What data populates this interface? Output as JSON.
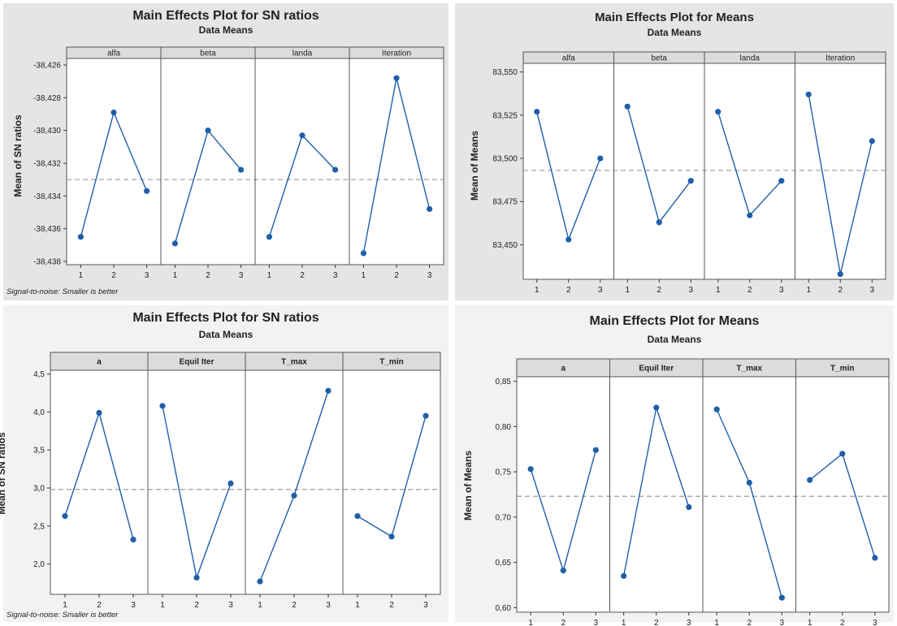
{
  "chart_data": [
    {
      "type": "line",
      "title": "Main Effects Plot for SN ratios",
      "subtitle": "Data Means",
      "ylabel": "Mean of SN ratios",
      "footnote": "Signal-to-noise: Smaller is better",
      "ylim": [
        -38.4382,
        -38.4256
      ],
      "yticks": [
        -38.426,
        -38.428,
        -38.43,
        -38.432,
        -38.434,
        -38.436,
        -38.438
      ],
      "ytick_labels": [
        "-38,426",
        "-38,428",
        "-38,430",
        "-38,432",
        "-38,434",
        "-38,436",
        "-38,438"
      ],
      "reference_line": -38.433,
      "categories": [
        "1",
        "2",
        "3"
      ],
      "series": [
        {
          "name": "alfa",
          "values": [
            -38.4365,
            -38.4289,
            -38.4337
          ]
        },
        {
          "name": "beta",
          "values": [
            -38.4369,
            -38.43,
            -38.4324
          ]
        },
        {
          "name": "landa",
          "values": [
            -38.4365,
            -38.4303,
            -38.4324
          ]
        },
        {
          "name": "Iteration",
          "values": [
            -38.4375,
            -38.4268,
            -38.4348
          ]
        }
      ]
    },
    {
      "type": "line",
      "title": "Main Effects Plot for Means",
      "subtitle": "Data Means",
      "ylabel": "Mean of Means",
      "ylim": [
        83.43,
        83.555
      ],
      "yticks": [
        83.45,
        83.475,
        83.5,
        83.525,
        83.55
      ],
      "ytick_labels": [
        "83,450",
        "83,475",
        "83,500",
        "83,525",
        "83,550"
      ],
      "reference_line": 83.493,
      "categories": [
        "1",
        "2",
        "3"
      ],
      "series": [
        {
          "name": "alfa",
          "values": [
            83.527,
            83.453,
            83.5
          ]
        },
        {
          "name": "beta",
          "values": [
            83.53,
            83.463,
            83.487
          ]
        },
        {
          "name": "landa",
          "values": [
            83.527,
            83.467,
            83.487
          ]
        },
        {
          "name": "Iteration",
          "values": [
            83.537,
            83.433,
            83.51
          ]
        }
      ]
    },
    {
      "type": "line",
      "title": "Main Effects Plot for SN ratios",
      "subtitle": "Data Means",
      "ylabel": "Mean of SN ratios",
      "footnote": "Signal-to-noise: Smaller is better",
      "ylim": [
        1.6,
        4.55
      ],
      "yticks": [
        2.0,
        2.5,
        3.0,
        3.5,
        4.0,
        4.5
      ],
      "ytick_labels": [
        "2,0",
        "2,5",
        "3,0",
        "3,5",
        "4,0",
        "4,5"
      ],
      "reference_line": 2.98,
      "categories": [
        "1",
        "2",
        "3"
      ],
      "series": [
        {
          "name": "a",
          "values": [
            2.63,
            3.99,
            2.32
          ]
        },
        {
          "name": "Equil Iter",
          "values": [
            4.08,
            1.82,
            3.06
          ]
        },
        {
          "name": "T_max",
          "values": [
            1.77,
            2.9,
            4.28
          ]
        },
        {
          "name": "T_min",
          "values": [
            2.63,
            2.36,
            3.95
          ]
        }
      ]
    },
    {
      "type": "line",
      "title": "Main Effects Plot for Means",
      "subtitle": "Data Means",
      "ylabel": "Mean of Means",
      "ylim": [
        0.595,
        0.855
      ],
      "yticks": [
        0.6,
        0.65,
        0.7,
        0.75,
        0.8,
        0.85
      ],
      "ytick_labels": [
        "0,60",
        "0,65",
        "0,70",
        "0,75",
        "0,80",
        "0,85"
      ],
      "reference_line": 0.723,
      "categories": [
        "1",
        "2",
        "3"
      ],
      "series": [
        {
          "name": "a",
          "values": [
            0.753,
            0.641,
            0.774
          ]
        },
        {
          "name": "Equil Iter",
          "values": [
            0.635,
            0.821,
            0.711
          ]
        },
        {
          "name": "T_max",
          "values": [
            0.819,
            0.738,
            0.611
          ]
        },
        {
          "name": "T_min",
          "values": [
            0.741,
            0.77,
            0.655
          ]
        }
      ]
    }
  ]
}
